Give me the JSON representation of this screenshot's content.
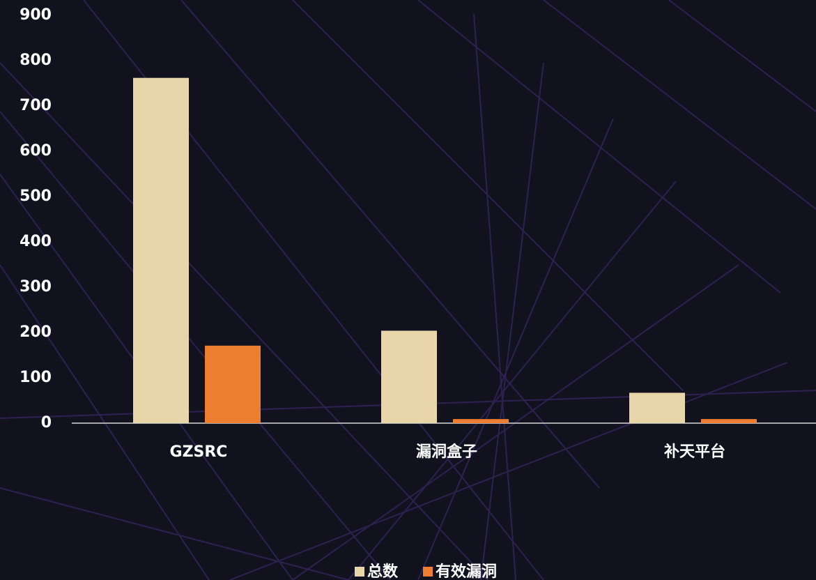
{
  "chart_data": {
    "type": "bar",
    "categories": [
      "GZSRC",
      "漏洞盒子",
      "补天平台"
    ],
    "series": [
      {
        "name": "总数",
        "color": "#e8d5a9",
        "values": [
          762,
          204,
          67
        ]
      },
      {
        "name": "有效漏洞",
        "color": "#ed7d31",
        "values": [
          171,
          9,
          9
        ]
      }
    ],
    "ylim": [
      0,
      900
    ],
    "yticks": [
      0,
      100,
      200,
      300,
      400,
      500,
      600,
      700,
      800,
      900
    ],
    "legend": "bottom"
  }
}
